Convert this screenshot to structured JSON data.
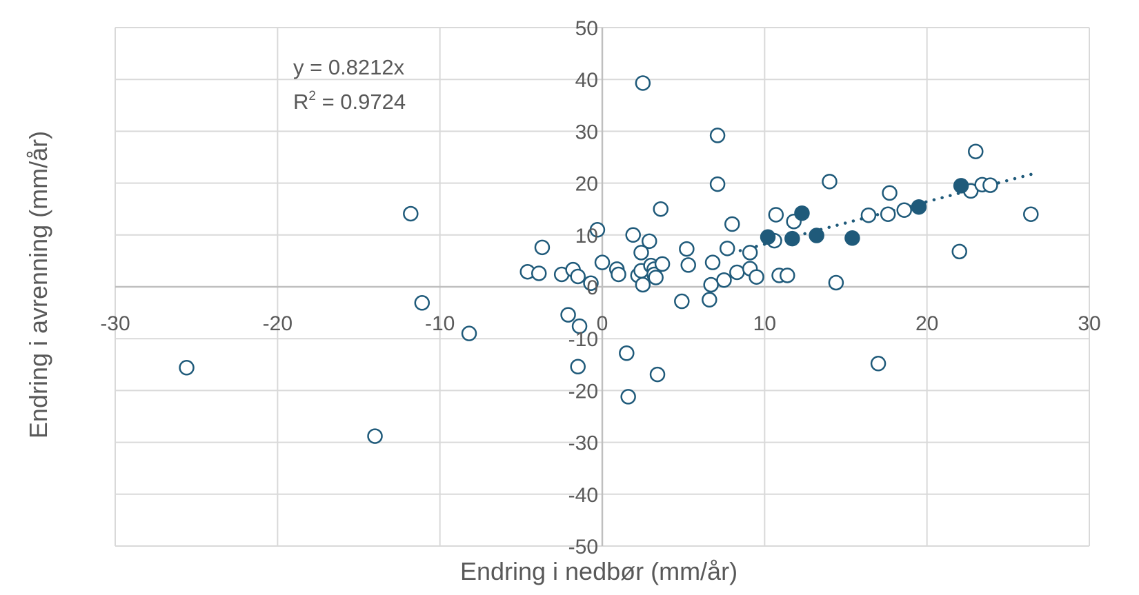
{
  "chart_data": {
    "type": "scatter",
    "xlabel": "Endring i nedbør (mm/år)",
    "ylabel": "Endring i avrenning (mm/år)",
    "xlim": [
      -30,
      30
    ],
    "ylim": [
      -50,
      50
    ],
    "x_ticks": [
      -30,
      -20,
      -10,
      0,
      10,
      20,
      30
    ],
    "y_ticks": [
      -50,
      -40,
      -30,
      -20,
      -10,
      0,
      10,
      20,
      30,
      40,
      50
    ],
    "grid": true,
    "legend": "none",
    "color": "#1f5a7a",
    "annotation": {
      "equation": "y = 0.8212x",
      "r2_prefix": "R",
      "r2_sup": "2",
      "r2_value": " = 0.9724"
    },
    "trendline": {
      "slope": 0.8212,
      "x_range": [
        8,
        26.5
      ],
      "style": "dotted"
    },
    "series": [
      {
        "marker": "open-circle",
        "points": [
          [
            -25.6,
            -15.6
          ],
          [
            -14.0,
            -28.8
          ],
          [
            -11.8,
            14.1
          ],
          [
            -11.1,
            -3.1
          ],
          [
            -8.2,
            -9.0
          ],
          [
            -4.6,
            2.9
          ],
          [
            -3.9,
            2.6
          ],
          [
            -3.7,
            7.6
          ],
          [
            -2.5,
            2.4
          ],
          [
            -2.1,
            -5.4
          ],
          [
            -1.8,
            3.3
          ],
          [
            -1.5,
            2.0
          ],
          [
            -1.4,
            -7.6
          ],
          [
            -1.5,
            -15.4
          ],
          [
            -0.7,
            0.7
          ],
          [
            -0.3,
            11.0
          ],
          [
            0.0,
            4.7
          ],
          [
            0.9,
            3.4
          ],
          [
            1.0,
            2.4
          ],
          [
            1.5,
            -12.8
          ],
          [
            1.6,
            -21.2
          ],
          [
            1.9,
            10.0
          ],
          [
            2.2,
            2.2
          ],
          [
            2.4,
            3.1
          ],
          [
            2.4,
            6.6
          ],
          [
            2.5,
            0.4
          ],
          [
            2.5,
            39.3
          ],
          [
            2.9,
            8.8
          ],
          [
            3.0,
            4.1
          ],
          [
            3.2,
            3.4
          ],
          [
            3.2,
            2.4
          ],
          [
            3.3,
            1.8
          ],
          [
            3.4,
            -16.9
          ],
          [
            3.6,
            15.0
          ],
          [
            3.7,
            4.4
          ],
          [
            4.9,
            -2.8
          ],
          [
            5.2,
            7.3
          ],
          [
            5.3,
            4.2
          ],
          [
            6.6,
            -2.5
          ],
          [
            6.7,
            0.4
          ],
          [
            6.8,
            4.7
          ],
          [
            7.1,
            29.2
          ],
          [
            7.1,
            19.8
          ],
          [
            7.5,
            1.3
          ],
          [
            7.7,
            7.4
          ],
          [
            8.0,
            12.1
          ],
          [
            8.3,
            2.8
          ],
          [
            9.1,
            6.6
          ],
          [
            9.1,
            3.5
          ],
          [
            9.5,
            1.9
          ],
          [
            10.6,
            8.9
          ],
          [
            10.7,
            13.9
          ],
          [
            10.9,
            2.2
          ],
          [
            11.4,
            2.2
          ],
          [
            11.8,
            12.6
          ],
          [
            14.0,
            20.3
          ],
          [
            14.4,
            0.8
          ],
          [
            16.4,
            13.8
          ],
          [
            17.0,
            -14.8
          ],
          [
            17.6,
            14.0
          ],
          [
            17.7,
            18.1
          ],
          [
            18.6,
            14.8
          ],
          [
            22.0,
            6.8
          ],
          [
            22.7,
            18.5
          ],
          [
            23.0,
            26.1
          ],
          [
            23.4,
            19.7
          ],
          [
            23.9,
            19.6
          ],
          [
            26.4,
            14.0
          ]
        ]
      },
      {
        "marker": "filled-circle",
        "points": [
          [
            10.2,
            9.6
          ],
          [
            11.7,
            9.3
          ],
          [
            12.3,
            14.2
          ],
          [
            13.2,
            9.9
          ],
          [
            15.4,
            9.4
          ],
          [
            19.5,
            15.4
          ],
          [
            22.1,
            19.5
          ]
        ]
      }
    ]
  }
}
